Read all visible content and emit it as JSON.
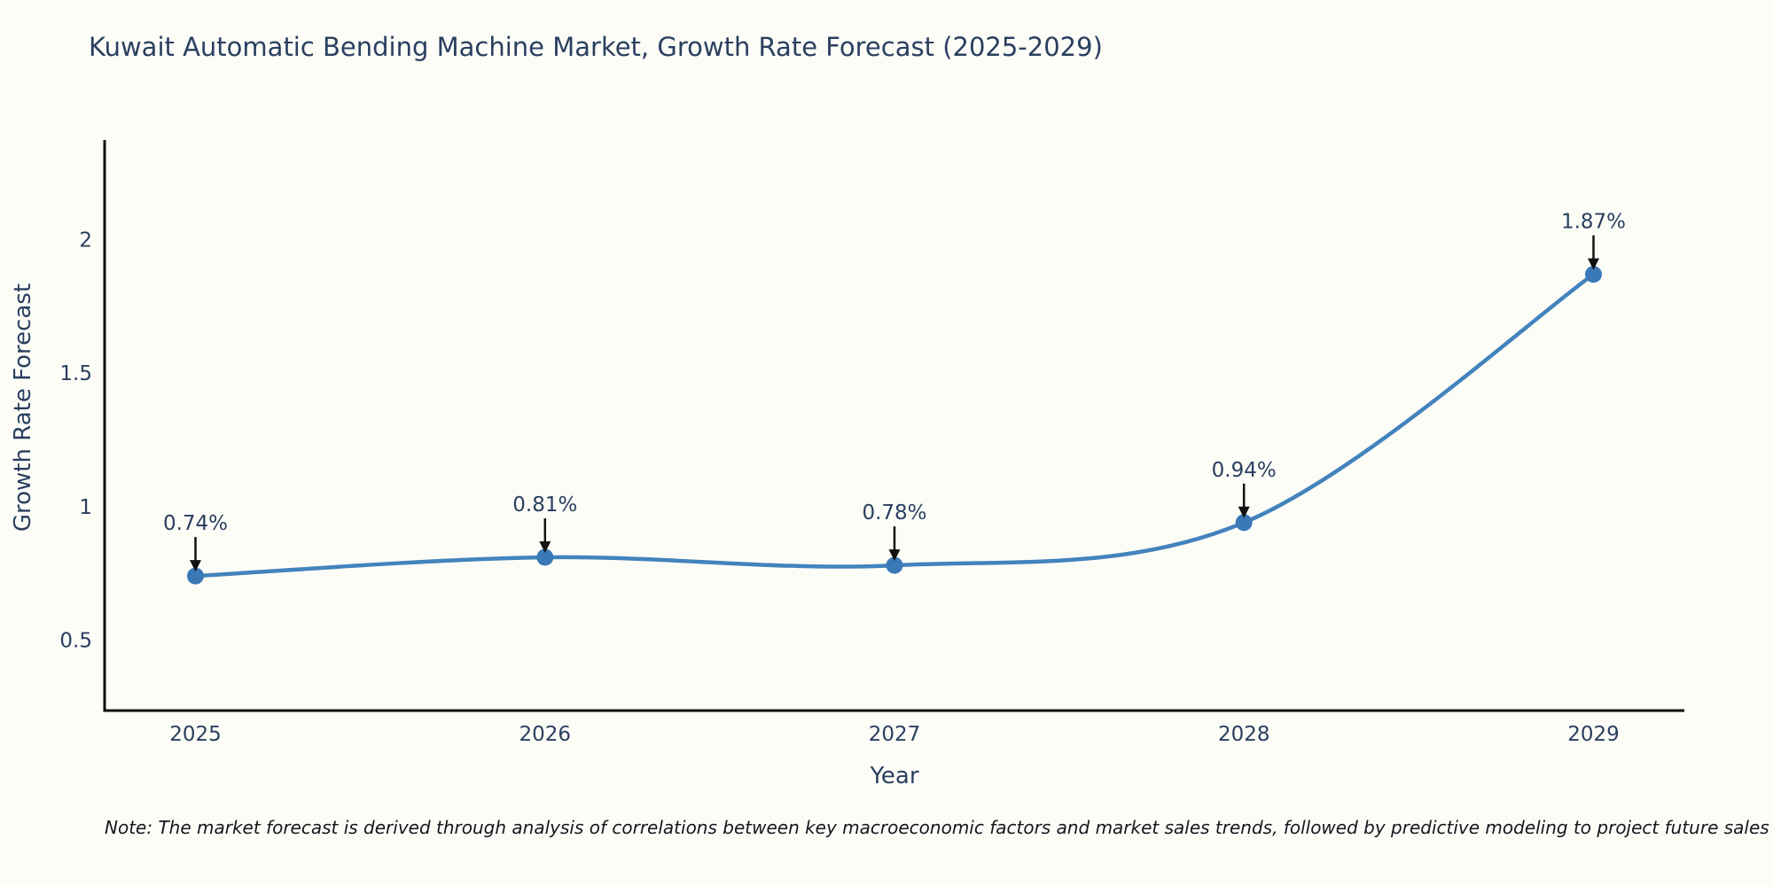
{
  "page": {
    "background": "#fdfdf8"
  },
  "chart_data": {
    "type": "line",
    "title": "Kuwait Automatic Bending Machine Market, Growth Rate Forecast (2025-2029)",
    "xlabel": "Year",
    "ylabel": "Growth Rate Forecast",
    "x": [
      2025,
      2026,
      2027,
      2028,
      2029
    ],
    "series": [
      {
        "name": "Growth Rate Forecast",
        "values": [
          0.74,
          0.81,
          0.78,
          0.94,
          1.87
        ]
      }
    ],
    "point_labels": [
      "0.74%",
      "0.81%",
      "0.78%",
      "0.94%",
      "1.87%"
    ],
    "xticks": [
      "2025",
      "2026",
      "2027",
      "2028",
      "2029"
    ],
    "xtick_values": [
      2025,
      2026,
      2027,
      2028,
      2029
    ],
    "yticks": [
      "0.5",
      "1",
      "1.5",
      "2"
    ],
    "ytick_values": [
      0.5,
      1,
      1.5,
      2
    ],
    "xlim": [
      2024.74,
      2029.26
    ],
    "ylim": [
      0.236,
      2.373
    ],
    "grid": false,
    "legend_position": "none",
    "line_shape": "spline",
    "colors": {
      "line": "#4383bd",
      "marker": "#3a78b6",
      "axis_line": "#0d0d0d",
      "tick_text": "#2a3f5f",
      "annotation_text": "#2a3f5f",
      "arrow": "#111111"
    }
  },
  "note": {
    "text": "Note: The market forecast is derived through analysis of correlations between key macroeconomic factors and market sales trends, followed by predictive modeling to project future sales"
  }
}
